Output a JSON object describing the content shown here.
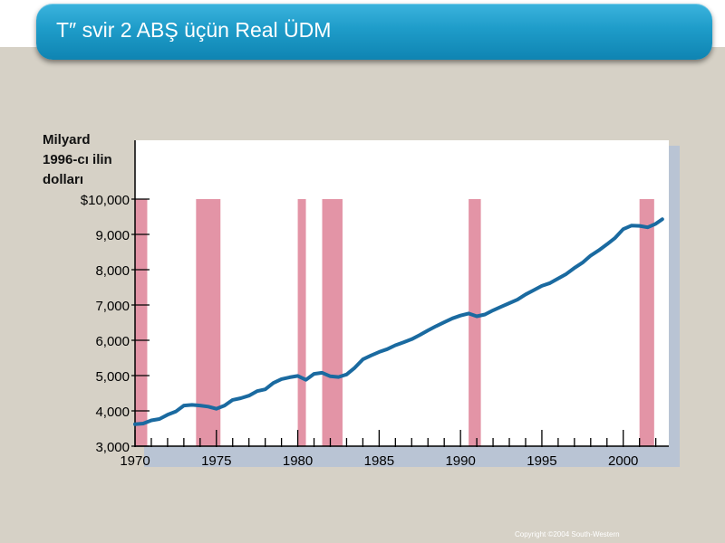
{
  "slide": {
    "title": "T″ svir 2 ABŞ üçün Real ÜDM",
    "copyright": "Copyright ©2004  South-Western"
  },
  "colors": {
    "title_bar": "#1e9cc9",
    "line": "#1a6aa0",
    "recession": "#e394a6",
    "background": "#d6d1c6",
    "plot_area": "#ffffff"
  },
  "chart_data": {
    "type": "line",
    "title": "",
    "ylabel": "Milyard 1996-cı ilin dolları",
    "ylabel_lines": [
      "Milyard",
      "1996-cı ilin",
      "dolları"
    ],
    "xlabel": "",
    "xlim": [
      1970,
      2002.8
    ],
    "ylim": [
      3000,
      10000
    ],
    "grid": false,
    "legend": "none",
    "x_ticks": [
      "1970",
      "1975",
      "1980",
      "1985",
      "1990",
      "1995",
      "2000"
    ],
    "y_ticks": [
      "$10,000",
      "9,000",
      "8,000",
      "7,000",
      "6,000",
      "5,000",
      "4,000",
      "3,000"
    ],
    "recessions": [
      {
        "start": 1970.0,
        "end": 1970.75
      },
      {
        "start": 1973.75,
        "end": 1975.25
      },
      {
        "start": 1980.0,
        "end": 1980.5
      },
      {
        "start": 1981.5,
        "end": 1982.75
      },
      {
        "start": 1990.5,
        "end": 1991.25
      },
      {
        "start": 2001.0,
        "end": 2001.9
      }
    ],
    "series": [
      {
        "x": [
          1970,
          1970.5,
          1971,
          1971.5,
          1972,
          1972.5,
          1973,
          1973.5,
          1974,
          1974.5,
          1975,
          1975.5,
          1976,
          1976.5,
          1977,
          1977.5,
          1978,
          1978.5,
          1979,
          1979.5,
          1980,
          1980.5,
          1981,
          1981.5,
          1982,
          1982.5,
          1983,
          1983.5,
          1984,
          1984.5,
          1985,
          1985.5,
          1986,
          1986.5,
          1987,
          1987.5,
          1988,
          1988.5,
          1989,
          1989.5,
          1990,
          1990.5,
          1991,
          1991.5,
          1992,
          1992.5,
          1993,
          1993.5,
          1994,
          1994.5,
          1995,
          1995.5,
          1996,
          1996.5,
          1997,
          1997.5,
          1998,
          1998.5,
          1999,
          1999.5,
          2000,
          2000.5,
          2001,
          2001.5,
          2002,
          2002.4
        ],
        "y": [
          3620,
          3640,
          3730,
          3770,
          3890,
          3980,
          4150,
          4170,
          4150,
          4120,
          4060,
          4150,
          4310,
          4360,
          4430,
          4560,
          4610,
          4790,
          4900,
          4950,
          4990,
          4880,
          5050,
          5080,
          4980,
          4960,
          5030,
          5220,
          5460,
          5570,
          5670,
          5750,
          5860,
          5940,
          6030,
          6150,
          6280,
          6400,
          6510,
          6620,
          6700,
          6760,
          6680,
          6730,
          6850,
          6950,
          7050,
          7150,
          7300,
          7420,
          7540,
          7620,
          7750,
          7880,
          8050,
          8200,
          8400,
          8550,
          8720,
          8900,
          9150,
          9250,
          9240,
          9200,
          9300,
          9430
        ]
      }
    ]
  }
}
